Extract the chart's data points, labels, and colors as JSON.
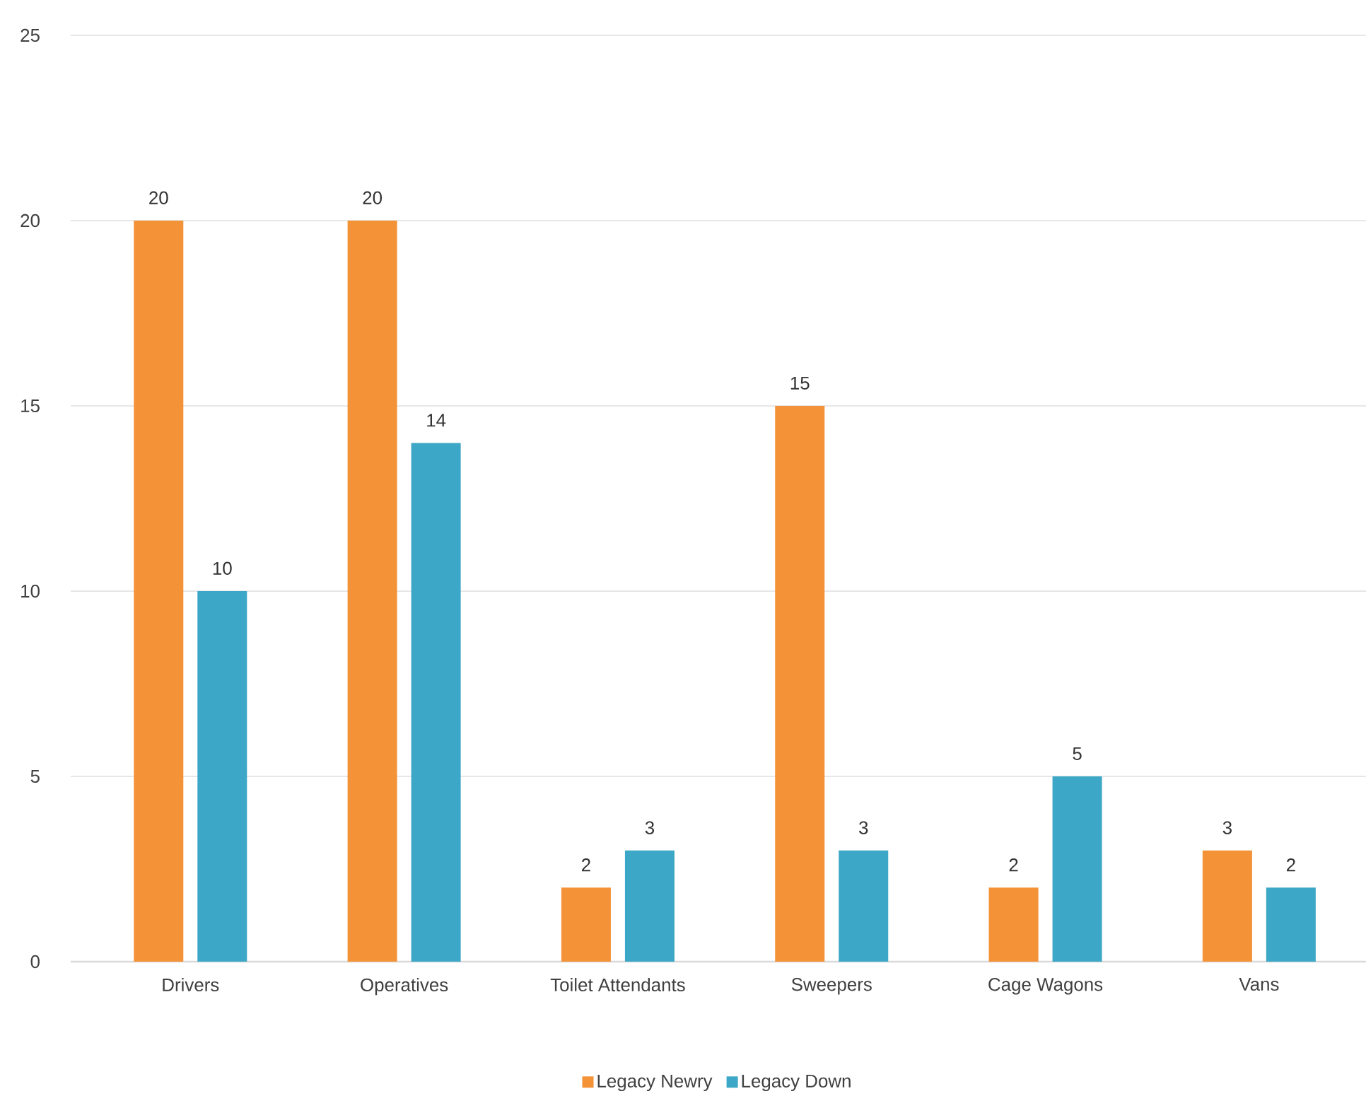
{
  "chart_data": {
    "type": "bar",
    "categories": [
      "Drivers",
      "Operatives",
      "Toilet Attendants",
      "Sweepers",
      "Cage Wagons",
      "Vans"
    ],
    "series": [
      {
        "name": "Legacy Newry",
        "color": "#f39237",
        "values": [
          20,
          20,
          2,
          15,
          2,
          3
        ]
      },
      {
        "name": "Legacy Down",
        "color": "#3ca7c6",
        "values": [
          10,
          14,
          3,
          3,
          5,
          2
        ]
      }
    ],
    "ylim": [
      0,
      25
    ],
    "yticks": [
      0,
      5,
      10,
      15,
      20,
      25
    ],
    "grid": "y",
    "legend": "bottom",
    "data_labels": true
  }
}
